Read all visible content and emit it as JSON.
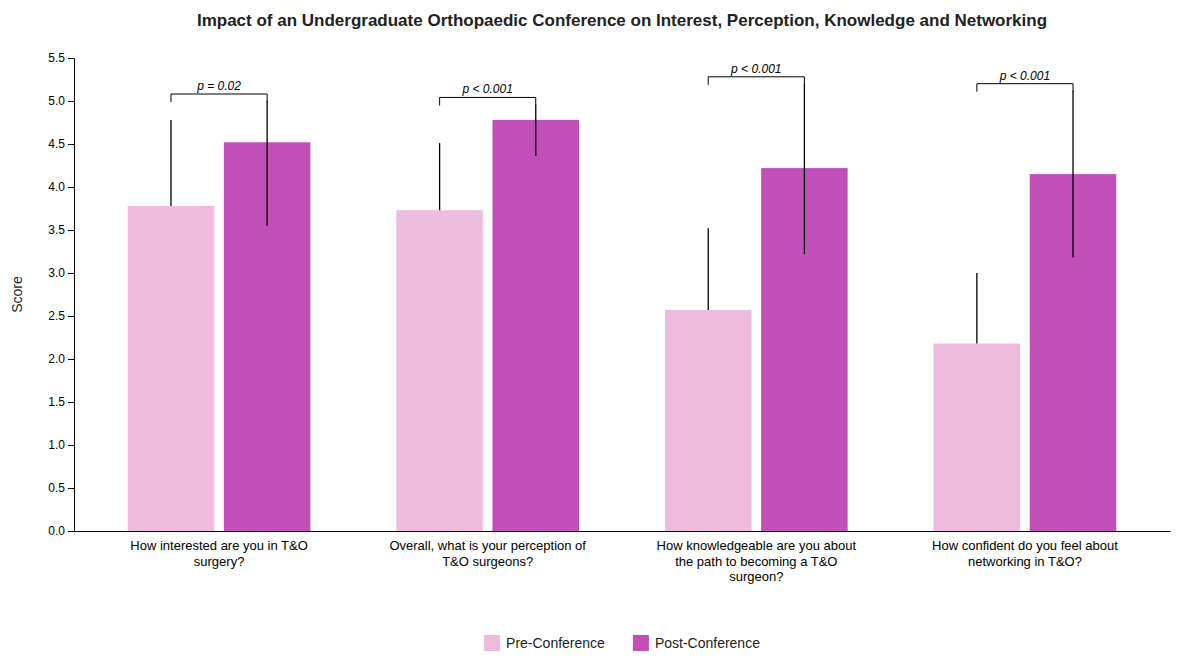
{
  "chart_data": {
    "type": "bar",
    "title": "Impact of an Undergraduate Orthopaedic Conference on Interest, Perception, Knowledge and Networking",
    "ylabel": "Score",
    "categories": [
      "How interested are you in T&O\nsurgery?",
      "Overall, what is your perception of\nT&O surgeons?",
      "How knowledgeable are you about\nthe path to becoming a T&O\nsurgeon?",
      "How confident do you feel about\nnetworking in T&O?"
    ],
    "series": [
      {
        "name": "Pre-Conference",
        "color": "#EDBBDC",
        "values": [
          3.78,
          3.73,
          2.57,
          2.18
        ],
        "error_upper": [
          1.0,
          0.78,
          0.95,
          0.82
        ],
        "error_lower": [
          0.0,
          0.0,
          0.0,
          0.0
        ]
      },
      {
        "name": "Post-Conference",
        "color": "#C050B8",
        "values": [
          4.52,
          4.78,
          4.22,
          4.15
        ],
        "error_upper": [
          0.48,
          0.18,
          0.98,
          0.97
        ],
        "error_lower": [
          0.97,
          0.42,
          1.0,
          0.97
        ]
      }
    ],
    "annotations": [
      "p = 0.02",
      "p < 0.001",
      "p < 0.001",
      "p < 0.001"
    ],
    "ylim": [
      0,
      5.5
    ],
    "yticks": [
      {
        "value": 0,
        "label": "0.0"
      },
      0.5,
      {
        "value": 1,
        "label": "1.0"
      },
      1.5,
      {
        "value": 2,
        "label": "2.0"
      },
      2.5,
      {
        "value": 3,
        "label": "3.0"
      },
      3.5,
      {
        "value": 4,
        "label": "4.0"
      },
      4.5,
      {
        "value": 5,
        "label": "5.0"
      },
      5.5
    ],
    "grid": false,
    "legend": "bottom"
  }
}
